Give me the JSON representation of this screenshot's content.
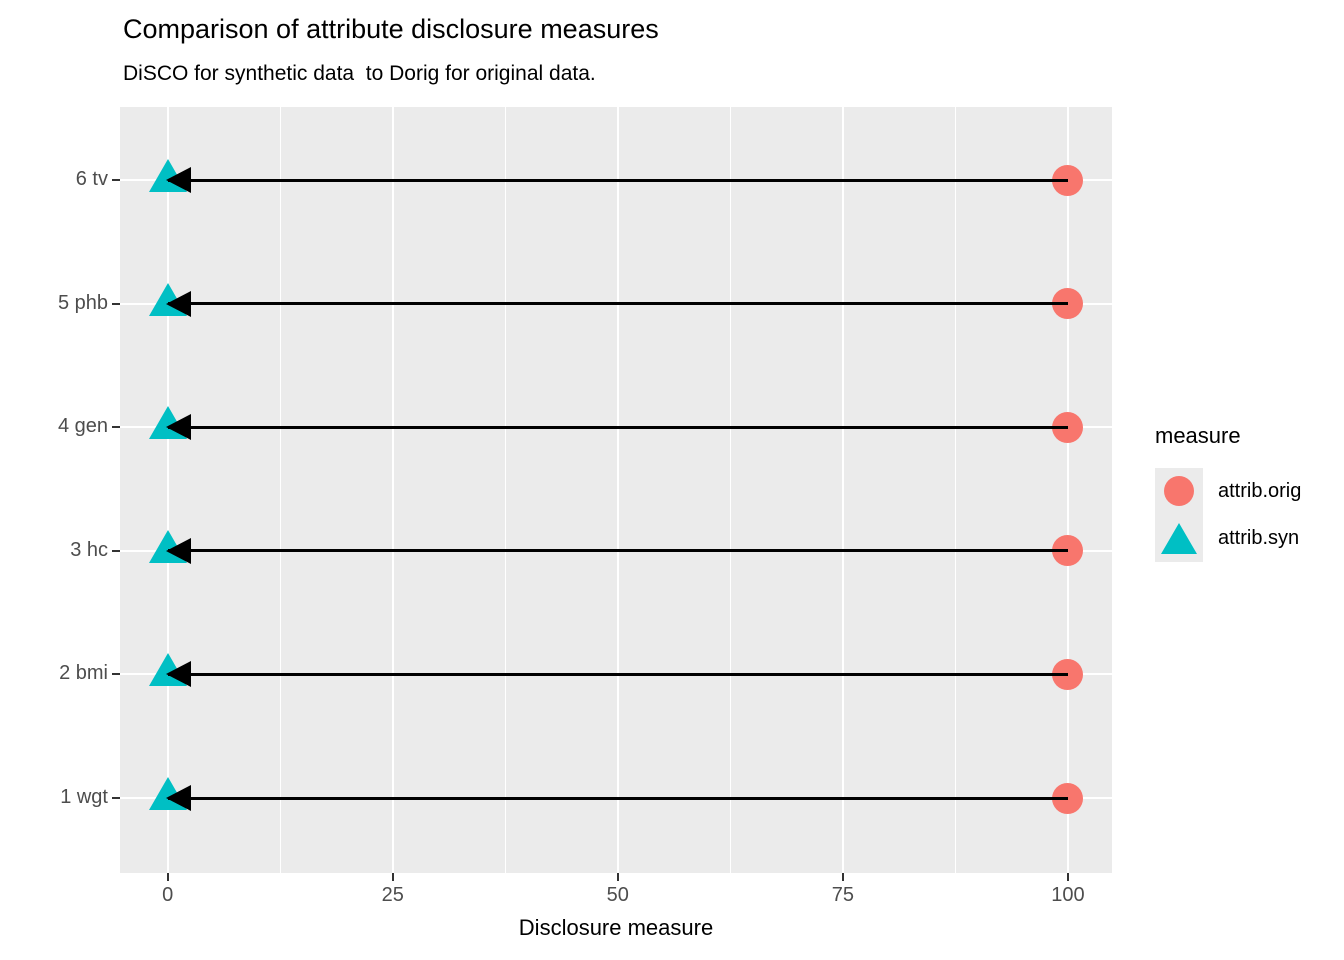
{
  "chart_data": {
    "type": "scatter",
    "variant": "dumbbell-arrow",
    "title": "Comparison of attribute disclosure measures",
    "subtitle": "DiSCO for synthetic data  to Dorig for original data.",
    "xlabel": "Disclosure measure",
    "ylabel": "",
    "xlim": [
      -5.3,
      104.9
    ],
    "x_major_ticks": [
      0,
      25,
      50,
      75,
      100
    ],
    "x_minor_gridlines": [
      12.5,
      37.5,
      62.5,
      87.5
    ],
    "grid": true,
    "panel_bg": "#EBEBEB",
    "gridline_color": "#FFFFFF",
    "axis_text_color": "#4D4D4D",
    "categories": [
      "6 tv",
      "5 phb",
      "4 gen",
      "3 hc",
      "2 bmi",
      "1 wgt"
    ],
    "series": [
      {
        "name": "attrib.orig",
        "marker": "circle",
        "color": "#F8766D",
        "values": [
          100,
          100,
          100,
          100,
          100,
          100
        ]
      },
      {
        "name": "attrib.syn",
        "marker": "triangle",
        "color": "#00BFC4",
        "values": [
          0,
          0,
          0,
          0,
          0,
          0
        ]
      }
    ],
    "arrows": [
      {
        "category": "6 tv",
        "from": 100,
        "to": 0
      },
      {
        "category": "5 phb",
        "from": 100,
        "to": 0
      },
      {
        "category": "4 gen",
        "from": 100,
        "to": 0
      },
      {
        "category": "3 hc",
        "from": 100,
        "to": 0
      },
      {
        "category": "2 bmi",
        "from": 100,
        "to": 0
      },
      {
        "category": "1 wgt",
        "from": 100,
        "to": 0
      }
    ],
    "arrow_color": "#000000",
    "legend": {
      "title": "measure",
      "position": "right"
    }
  }
}
